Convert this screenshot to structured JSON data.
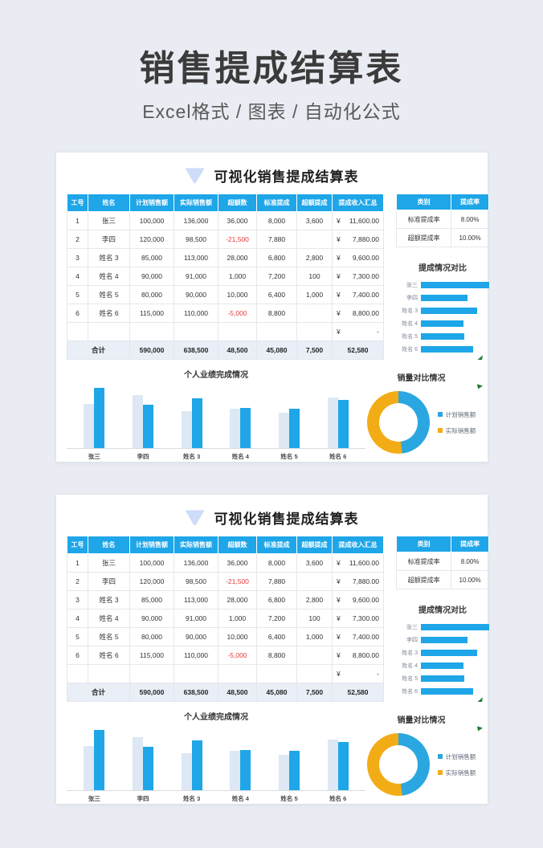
{
  "page_header": {
    "title": "销售提成结算表",
    "subtitle": "Excel格式 / 图表 / 自动化公式"
  },
  "card": {
    "title": "可视化销售提成结算表",
    "table": {
      "headers": [
        "工号",
        "姓名",
        "计划销售额",
        "实际销售额",
        "超额数",
        "标准提成",
        "超额提成",
        "提成收入汇总"
      ],
      "currency": "¥",
      "rows": [
        {
          "id": "1",
          "name": "张三",
          "plan": "100,000",
          "actual": "136,000",
          "excess": "36,000",
          "std": "8,000",
          "extra": "3,600",
          "total": "11,600.00"
        },
        {
          "id": "2",
          "name": "李四",
          "plan": "120,000",
          "actual": "98,500",
          "excess": "-21,500",
          "std": "7,880",
          "extra": "",
          "total": "7,880.00"
        },
        {
          "id": "3",
          "name": "姓名 3",
          "plan": "85,000",
          "actual": "113,000",
          "excess": "28,000",
          "std": "6,800",
          "extra": "2,800",
          "total": "9,600.00"
        },
        {
          "id": "4",
          "name": "姓名 4",
          "plan": "90,000",
          "actual": "91,000",
          "excess": "1,000",
          "std": "7,200",
          "extra": "100",
          "total": "7,300.00"
        },
        {
          "id": "5",
          "name": "姓名 5",
          "plan": "80,000",
          "actual": "90,000",
          "excess": "10,000",
          "std": "6,400",
          "extra": "1,000",
          "total": "7,400.00"
        },
        {
          "id": "6",
          "name": "姓名 6",
          "plan": "115,000",
          "actual": "110,000",
          "excess": "-5,000",
          "std": "8,800",
          "extra": "",
          "total": "8,800.00"
        }
      ],
      "empty_row_total": "-",
      "total_row": {
        "label": "合计",
        "plan": "590,000",
        "actual": "638,500",
        "excess": "48,500",
        "std": "45,080",
        "extra": "7,500",
        "total": "52,580"
      }
    },
    "rate_table": {
      "headers": [
        "类别",
        "提成率"
      ],
      "rows": [
        [
          "标准提成率",
          "8.00%"
        ],
        [
          "超额提成率",
          "10.00%"
        ]
      ]
    }
  },
  "colors": {
    "accent_blue": "#1ea6e8",
    "plan_bar_light": "#dde8f4",
    "donut_yellow": "#f2ac15",
    "negative_red": "#e23b3b"
  },
  "chart_data": [
    {
      "type": "bar",
      "orientation": "horizontal",
      "title": "提成情况对比",
      "categories": [
        "张三",
        "李四",
        "姓名 3",
        "姓名 4",
        "姓名 5",
        "姓名 6"
      ],
      "values": [
        11600,
        7880,
        9600,
        7300,
        7400,
        8800
      ],
      "color": "#1ea6e8",
      "xlabel": "",
      "ylabel": "",
      "grid": false,
      "legend": false
    },
    {
      "type": "bar",
      "orientation": "vertical",
      "title": "个人业绩完成情况",
      "categories": [
        "张三",
        "李四",
        "姓名 3",
        "姓名 4",
        "姓名 5",
        "姓名 6"
      ],
      "series": [
        {
          "name": "计划销售额",
          "color": "#dde8f4",
          "values": [
            100000,
            120000,
            85000,
            90000,
            80000,
            115000
          ]
        },
        {
          "name": "实际销售额",
          "color": "#1ea6e8",
          "values": [
            136000,
            98500,
            113000,
            91000,
            90000,
            110000
          ]
        }
      ],
      "ylim": [
        0,
        136000
      ],
      "grid": false,
      "legend": false
    },
    {
      "type": "pie",
      "title": "销量对比情况",
      "legend_position": "right",
      "slices": [
        {
          "label": "计划销售额",
          "value": 590000,
          "color": "#2aa7e0"
        },
        {
          "label": "实际销售额",
          "value": 638500,
          "color": "#f2ac15"
        }
      ]
    }
  ]
}
